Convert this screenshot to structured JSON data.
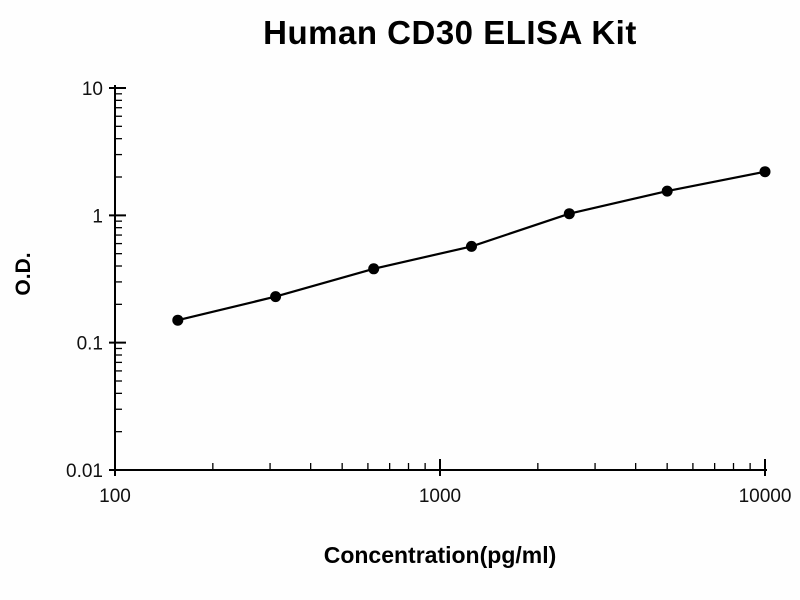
{
  "page": {
    "background": "#ffffff"
  },
  "chart_data": {
    "type": "line",
    "title": "Human CD30 ELISA Kit",
    "xlabel": "Concentration(pg/ml)",
    "ylabel": "O.D.",
    "x_scale": "log",
    "y_scale": "log",
    "xlim": [
      100,
      10000
    ],
    "ylim": [
      0.01,
      10
    ],
    "x": [
      156,
      312,
      625,
      1250,
      2500,
      5000,
      10000
    ],
    "y": [
      0.15,
      0.23,
      0.38,
      0.57,
      1.03,
      1.55,
      2.2
    ],
    "x_ticks": {
      "values": [
        100,
        1000,
        10000
      ],
      "labels": [
        "100",
        "1000",
        "10000"
      ]
    },
    "y_ticks": {
      "values": [
        10,
        1,
        0.1,
        0.01
      ],
      "labels": [
        "10",
        "1",
        "0.1",
        "0.01"
      ]
    },
    "line_color": "#000000",
    "marker_color": "#000000",
    "marker": "circle",
    "grid": false,
    "legend": "none"
  }
}
